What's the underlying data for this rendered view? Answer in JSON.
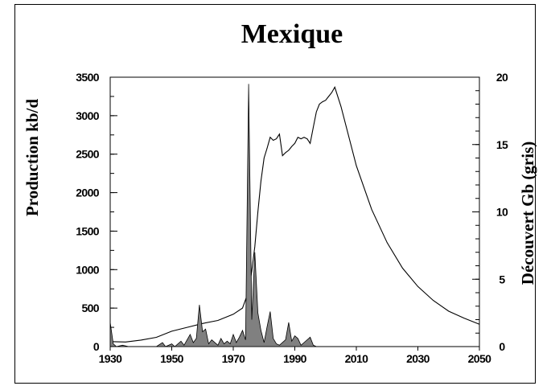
{
  "chart_data": {
    "type": "line",
    "title": "Mexique",
    "ylabel": "Production kb/d",
    "y2label": "Découvert Gb (gris)",
    "xlim": [
      1930,
      2050
    ],
    "ylim": [
      0,
      3500
    ],
    "y2lim": [
      0,
      20
    ],
    "x_ticks": [
      1930,
      1950,
      1970,
      1990,
      2010,
      2030,
      2050
    ],
    "y_ticks": [
      0,
      500,
      1000,
      1500,
      2000,
      2500,
      3000,
      3500
    ],
    "y2_ticks": [
      0,
      5,
      10,
      15,
      20
    ],
    "grid": false,
    "series": [
      {
        "axis": "left",
        "style": "line",
        "color": "#000000",
        "points": [
          [
            1930,
            65
          ],
          [
            1935,
            60
          ],
          [
            1940,
            85
          ],
          [
            1945,
            120
          ],
          [
            1950,
            200
          ],
          [
            1955,
            250
          ],
          [
            1960,
            300
          ],
          [
            1965,
            340
          ],
          [
            1970,
            420
          ],
          [
            1973,
            500
          ],
          [
            1975,
            720
          ],
          [
            1976,
            980
          ],
          [
            1977,
            1300
          ],
          [
            1978,
            1750
          ],
          [
            1979,
            2150
          ],
          [
            1980,
            2450
          ],
          [
            1981,
            2580
          ],
          [
            1982,
            2720
          ],
          [
            1983,
            2680
          ],
          [
            1984,
            2700
          ],
          [
            1985,
            2760
          ],
          [
            1986,
            2480
          ],
          [
            1987,
            2520
          ],
          [
            1988,
            2550
          ],
          [
            1989,
            2600
          ],
          [
            1990,
            2640
          ],
          [
            1991,
            2720
          ],
          [
            1992,
            2700
          ],
          [
            1993,
            2720
          ],
          [
            1994,
            2700
          ],
          [
            1995,
            2640
          ],
          [
            1996,
            2850
          ],
          [
            1997,
            3050
          ],
          [
            1998,
            3150
          ],
          [
            1999,
            3180
          ],
          [
            2000,
            3200
          ],
          [
            2001,
            3250
          ],
          [
            2002,
            3300
          ],
          [
            2003,
            3370
          ],
          [
            2005,
            3120
          ],
          [
            2010,
            2350
          ],
          [
            2015,
            1780
          ],
          [
            2020,
            1350
          ],
          [
            2025,
            1020
          ],
          [
            2030,
            780
          ],
          [
            2035,
            600
          ],
          [
            2040,
            460
          ],
          [
            2045,
            370
          ],
          [
            2050,
            290
          ]
        ]
      },
      {
        "axis": "right",
        "style": "area",
        "color": "#808080",
        "points": [
          [
            1930,
            1.8
          ],
          [
            1931,
            0.2
          ],
          [
            1932,
            0
          ],
          [
            1934,
            0.1
          ],
          [
            1936,
            0
          ],
          [
            1945,
            0
          ],
          [
            1947,
            0.3
          ],
          [
            1948,
            0
          ],
          [
            1950,
            0.2
          ],
          [
            1951,
            0
          ],
          [
            1953,
            0.4
          ],
          [
            1954,
            0.1
          ],
          [
            1956,
            0.9
          ],
          [
            1957,
            0.3
          ],
          [
            1958,
            0.6
          ],
          [
            1959,
            3.1
          ],
          [
            1960,
            1.1
          ],
          [
            1961,
            1.3
          ],
          [
            1962,
            0.2
          ],
          [
            1963,
            0.5
          ],
          [
            1965,
            0.1
          ],
          [
            1966,
            0.6
          ],
          [
            1967,
            0.2
          ],
          [
            1968,
            0.4
          ],
          [
            1969,
            0.2
          ],
          [
            1970,
            0.9
          ],
          [
            1971,
            0.3
          ],
          [
            1972,
            0.7
          ],
          [
            1973,
            1.2
          ],
          [
            1974,
            0.5
          ],
          [
            1975,
            19.5
          ],
          [
            1976,
            2.0
          ],
          [
            1977,
            7.0
          ],
          [
            1978,
            2.5
          ],
          [
            1979,
            1.2
          ],
          [
            1980,
            0.3
          ],
          [
            1981,
            1.5
          ],
          [
            1982,
            2.6
          ],
          [
            1983,
            0.6
          ],
          [
            1984,
            0.2
          ],
          [
            1985,
            0.1
          ],
          [
            1987,
            0.5
          ],
          [
            1988,
            1.8
          ],
          [
            1989,
            0.4
          ],
          [
            1990,
            0.8
          ],
          [
            1991,
            0.6
          ],
          [
            1992,
            0.1
          ],
          [
            1993,
            0.3
          ],
          [
            1995,
            0.7
          ],
          [
            1996,
            0.1
          ],
          [
            1997,
            0
          ],
          [
            2000,
            0
          ]
        ]
      }
    ]
  }
}
